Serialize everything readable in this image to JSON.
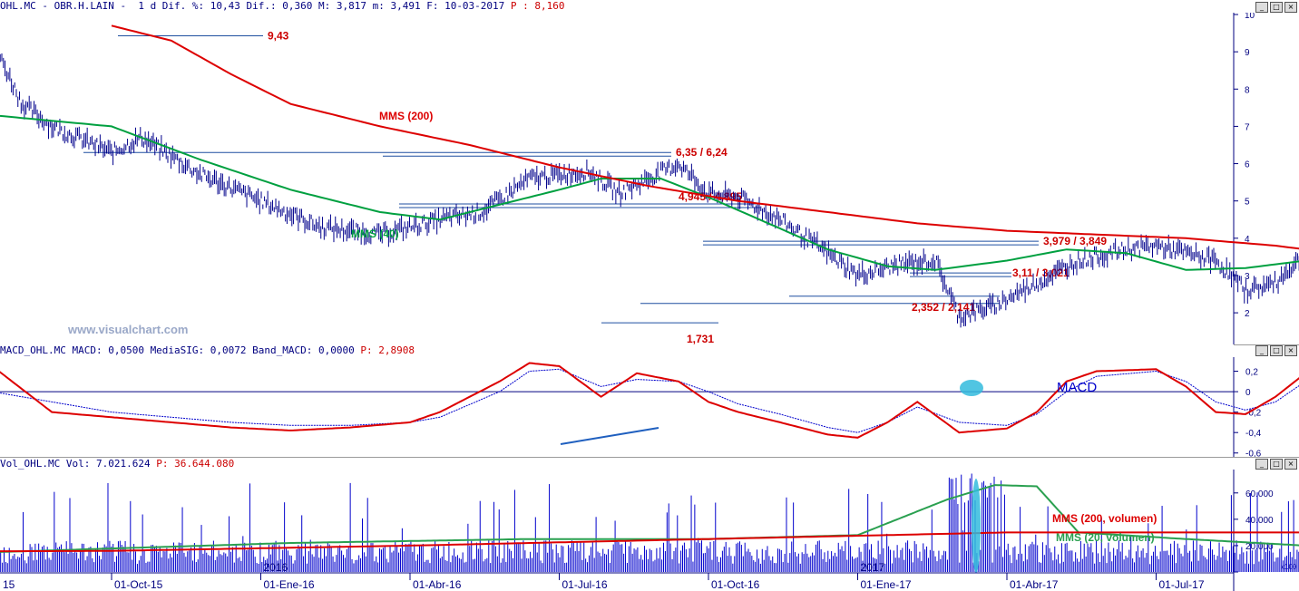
{
  "price_header": "OHL.MC - OBR.H.LAIN -  1 d Dif. %: 10,43 Dif.: 0,360 M: 3,817 m: 3,491 F: 10-03-2017",
  "price_header_p": " P : 8,160",
  "macd_header": "MACD_OHL.MC MACD: 0,0500 MediaSIG: 0,0072 Band_MACD: 0,0000",
  "macd_header_p": " P: 2,8908",
  "vol_header": "Vol_OHL.MC Vol: 7.021.624",
  "vol_header_p": " P: 36.644.080",
  "watermark": "www.visualchart.com",
  "colors": {
    "price": "#00008b",
    "mms200": "#dd0000",
    "mms40": "#00a040",
    "levels": "#1f4fa0",
    "label_red": "#cc0000",
    "macd": "#dd0000",
    "signal": "#0000cc",
    "vol_bar": "#0000cc",
    "highlight": "#33bbdd"
  },
  "chart_data": [
    {
      "type": "line",
      "panel": "price",
      "yticks": [
        "10",
        "9",
        "8",
        "7",
        "6",
        "5",
        "4",
        "3",
        "2"
      ],
      "ylim": [
        1.2,
        10
      ],
      "xtick_labels": [
        "15",
        "01-Oct-15",
        "01-Ene-16",
        "01-Abr-16",
        "01-Jul-16",
        "01-Oct-16",
        "01-Ene-17",
        "01-Abr-17",
        "01-Jul-17"
      ],
      "year_markers": [
        "2016",
        "2017"
      ],
      "series": [
        {
          "name": "MMS (200)",
          "points": [
            [
              0,
              9.7
            ],
            [
              0.1,
              9.3
            ],
            [
              0.2,
              8.4
            ],
            [
              0.3,
              7.6
            ],
            [
              0.45,
              7.0
            ],
            [
              0.6,
              6.5
            ],
            [
              0.75,
              5.9
            ],
            [
              0.9,
              5.4
            ],
            [
              1.05,
              5.0
            ],
            [
              1.2,
              4.7
            ],
            [
              1.35,
              4.4
            ],
            [
              1.5,
              4.2
            ],
            [
              1.65,
              4.1
            ],
            [
              1.8,
              4.0
            ],
            [
              1.95,
              3.8
            ],
            [
              2.05,
              3.6
            ],
            [
              2.13,
              3.45
            ],
            [
              2.16,
              3.33
            ]
          ]
        },
        {
          "name": "MMS (40)",
          "points": [
            [
              -0.65,
              9.6
            ],
            [
              -0.55,
              9.0
            ],
            [
              -0.45,
              8.3
            ],
            [
              -0.35,
              7.6
            ],
            [
              -0.2,
              7.3
            ],
            [
              0,
              7.0
            ],
            [
              0.15,
              6.1
            ],
            [
              0.3,
              5.3
            ],
            [
              0.45,
              4.7
            ],
            [
              0.55,
              4.5
            ],
            [
              0.65,
              4.9
            ],
            [
              0.75,
              5.3
            ],
            [
              0.82,
              5.6
            ],
            [
              0.92,
              5.6
            ],
            [
              1.0,
              5.1
            ],
            [
              1.1,
              4.4
            ],
            [
              1.2,
              3.7
            ],
            [
              1.3,
              3.25
            ],
            [
              1.38,
              3.15
            ],
            [
              1.5,
              3.4
            ],
            [
              1.6,
              3.7
            ],
            [
              1.7,
              3.6
            ],
            [
              1.8,
              3.15
            ],
            [
              1.9,
              3.2
            ],
            [
              2.0,
              3.4
            ],
            [
              2.1,
              3.3
            ],
            [
              2.16,
              3.4
            ]
          ]
        },
        {
          "name": "price",
          "points": [
            [
              -0.7,
              9.6
            ],
            [
              -0.6,
              8.2
            ],
            [
              -0.5,
              7.3
            ],
            [
              -0.4,
              7.2
            ],
            [
              -0.3,
              6.6
            ],
            [
              -0.25,
              7.8
            ],
            [
              -0.2,
              9.3
            ],
            [
              -0.15,
              7.6
            ],
            [
              -0.1,
              7.0
            ],
            [
              0,
              6.3
            ],
            [
              0.05,
              6.7
            ],
            [
              0.15,
              5.7
            ],
            [
              0.25,
              5.0
            ],
            [
              0.35,
              4.3
            ],
            [
              0.45,
              4.1
            ],
            [
              0.55,
              4.5
            ],
            [
              0.62,
              4.7
            ],
            [
              0.7,
              5.6
            ],
            [
              0.8,
              5.8
            ],
            [
              0.85,
              5.2
            ],
            [
              0.95,
              6.0
            ],
            [
              1.0,
              5.2
            ],
            [
              1.05,
              5.1
            ],
            [
              1.12,
              4.5
            ],
            [
              1.2,
              3.6
            ],
            [
              1.25,
              3.0
            ],
            [
              1.32,
              3.3
            ],
            [
              1.38,
              3.4
            ],
            [
              1.42,
              1.9
            ],
            [
              1.48,
              2.2
            ],
            [
              1.55,
              2.8
            ],
            [
              1.62,
              3.4
            ],
            [
              1.7,
              3.7
            ],
            [
              1.75,
              3.8
            ],
            [
              1.85,
              3.4
            ],
            [
              1.9,
              2.6
            ],
            [
              1.95,
              2.8
            ],
            [
              2.0,
              3.6
            ],
            [
              2.05,
              3.7
            ],
            [
              2.1,
              3.2
            ],
            [
              2.15,
              3.4
            ],
            [
              2.16,
              3.8
            ]
          ]
        }
      ],
      "levels": [
        {
          "label": "9,43",
          "value": 9.43
        },
        {
          "label": "6,35 / 6,24",
          "value": 6.3
        },
        {
          "label": "4,945 / 4,895",
          "value": 4.92
        },
        {
          "label": "3,979 / 3,849",
          "value": 3.92
        },
        {
          "label": "3,11 / 3,021",
          "value": 3.07
        },
        {
          "label": "2,352 / 2,141",
          "value": 2.25
        },
        {
          "label": "1,731",
          "value": 1.731
        }
      ],
      "annotations": [
        "MMS (200)",
        "MMS (40)"
      ]
    },
    {
      "type": "line",
      "panel": "macd",
      "yticks": [
        "0,2",
        "0",
        "-0,2",
        "-0,4",
        "-0,6"
      ],
      "ylim": [
        -0.62,
        0.32
      ],
      "annotation": "MACD",
      "series": [
        {
          "name": "MACD",
          "points": [
            [
              -0.7,
              -0.1
            ],
            [
              -0.55,
              -0.48
            ],
            [
              -0.45,
              -0.5
            ],
            [
              -0.35,
              -0.42
            ],
            [
              -0.25,
              -0.35
            ],
            [
              -0.2,
              0.25
            ],
            [
              -0.1,
              -0.2
            ],
            [
              0,
              -0.25
            ],
            [
              0.1,
              -0.3
            ],
            [
              0.2,
              -0.35
            ],
            [
              0.3,
              -0.38
            ],
            [
              0.4,
              -0.35
            ],
            [
              0.5,
              -0.3
            ],
            [
              0.55,
              -0.2
            ],
            [
              0.65,
              0.1
            ],
            [
              0.7,
              0.28
            ],
            [
              0.75,
              0.25
            ],
            [
              0.82,
              -0.05
            ],
            [
              0.88,
              0.18
            ],
            [
              0.95,
              0.1
            ],
            [
              1.0,
              -0.1
            ],
            [
              1.05,
              -0.2
            ],
            [
              1.12,
              -0.3
            ],
            [
              1.2,
              -0.42
            ],
            [
              1.25,
              -0.45
            ],
            [
              1.3,
              -0.3
            ],
            [
              1.35,
              -0.1
            ],
            [
              1.42,
              -0.4
            ],
            [
              1.5,
              -0.36
            ],
            [
              1.55,
              -0.2
            ],
            [
              1.6,
              0.1
            ],
            [
              1.65,
              0.2
            ],
            [
              1.75,
              0.22
            ],
            [
              1.8,
              0.05
            ],
            [
              1.85,
              -0.2
            ],
            [
              1.9,
              -0.22
            ],
            [
              1.95,
              -0.05
            ],
            [
              2.0,
              0.18
            ],
            [
              2.05,
              0.1
            ],
            [
              2.1,
              0.0
            ],
            [
              2.16,
              0.05
            ]
          ]
        },
        {
          "name": "Signal",
          "points": [
            [
              -0.7,
              -0.05
            ],
            [
              -0.55,
              -0.35
            ],
            [
              -0.45,
              -0.45
            ],
            [
              -0.35,
              -0.4
            ],
            [
              -0.25,
              -0.3
            ],
            [
              -0.2,
              0.0
            ],
            [
              -0.1,
              -0.1
            ],
            [
              0,
              -0.2
            ],
            [
              0.1,
              -0.25
            ],
            [
              0.2,
              -0.3
            ],
            [
              0.3,
              -0.33
            ],
            [
              0.4,
              -0.33
            ],
            [
              0.5,
              -0.3
            ],
            [
              0.55,
              -0.25
            ],
            [
              0.65,
              0.0
            ],
            [
              0.7,
              0.2
            ],
            [
              0.75,
              0.22
            ],
            [
              0.82,
              0.05
            ],
            [
              0.88,
              0.12
            ],
            [
              0.95,
              0.1
            ],
            [
              1.0,
              0.0
            ],
            [
              1.05,
              -0.12
            ],
            [
              1.12,
              -0.22
            ],
            [
              1.2,
              -0.35
            ],
            [
              1.25,
              -0.4
            ],
            [
              1.3,
              -0.3
            ],
            [
              1.35,
              -0.15
            ],
            [
              1.42,
              -0.3
            ],
            [
              1.5,
              -0.33
            ],
            [
              1.55,
              -0.22
            ],
            [
              1.6,
              0.0
            ],
            [
              1.65,
              0.15
            ],
            [
              1.75,
              0.2
            ],
            [
              1.8,
              0.1
            ],
            [
              1.85,
              -0.1
            ],
            [
              1.9,
              -0.18
            ],
            [
              1.95,
              -0.1
            ],
            [
              2.0,
              0.1
            ],
            [
              2.05,
              0.1
            ],
            [
              2.1,
              0.02
            ],
            [
              2.16,
              0.01
            ]
          ]
        }
      ]
    },
    {
      "type": "bar",
      "panel": "volume",
      "yticks": [
        "60.000",
        "40.000",
        "20.000",
        "0"
      ],
      "unit_label": "x100",
      "ylim": [
        0,
        75000
      ],
      "series": [
        {
          "name": "MMS (200, volumen)",
          "points": [
            [
              -0.7,
              15000
            ],
            [
              0,
              16000
            ],
            [
              0.5,
              20000
            ],
            [
              1.0,
              25000
            ],
            [
              1.5,
              30000
            ],
            [
              2.0,
              30000
            ],
            [
              2.16,
              29000
            ]
          ]
        },
        {
          "name": "MMS (20, volumen)",
          "points": [
            [
              -0.7,
              20000
            ],
            [
              -0.2,
              15000
            ],
            [
              0.3,
              22000
            ],
            [
              0.7,
              25000
            ],
            [
              1.0,
              25000
            ],
            [
              1.25,
              28000
            ],
            [
              1.4,
              55000
            ],
            [
              1.48,
              66000
            ],
            [
              1.55,
              65000
            ],
            [
              1.62,
              30000
            ],
            [
              1.8,
              25000
            ],
            [
              2.0,
              20000
            ],
            [
              2.16,
              18000
            ]
          ]
        }
      ]
    }
  ]
}
